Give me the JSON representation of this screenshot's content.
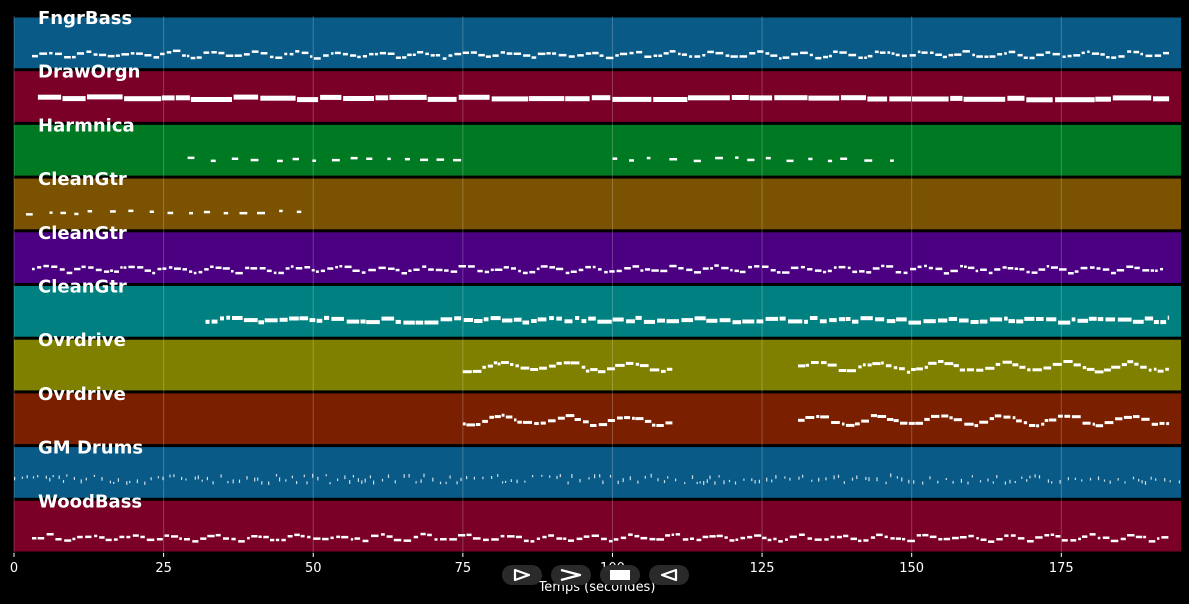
{
  "chart_data": {
    "type": "piano-roll",
    "xlabel": "Temps (secondes)",
    "xlim": [
      0,
      195
    ],
    "x_ticks": [
      0,
      25,
      50,
      75,
      100,
      125,
      150,
      175
    ],
    "x_tick_labels": [
      "0",
      "25",
      "50",
      "75",
      "100",
      "125",
      "150",
      "175"
    ],
    "grid": true,
    "tracks": [
      {
        "name": "FngrBass",
        "color": "#0a5a87",
        "style": "bass",
        "segments": [
          [
            3,
            193
          ]
        ]
      },
      {
        "name": "DrawOrgn",
        "color": "#7a0028",
        "style": "sustain",
        "segments": [
          [
            4,
            193
          ]
        ]
      },
      {
        "name": "Harmnica",
        "color": "#007a22",
        "style": "sparse",
        "segments": [
          [
            29,
            76
          ],
          [
            100,
            147
          ]
        ]
      },
      {
        "name": "CleanGtr",
        "color": "#7a5200",
        "style": "sparse",
        "segments": [
          [
            2,
            48
          ]
        ]
      },
      {
        "name": "CleanGtr",
        "color": "#4a0080",
        "style": "bass",
        "segments": [
          [
            3,
            192
          ]
        ]
      },
      {
        "name": "CleanGtr",
        "color": "#008080",
        "style": "dense",
        "segments": [
          [
            32,
            193
          ]
        ]
      },
      {
        "name": "Ovrdrive",
        "color": "#808000",
        "style": "melody",
        "segments": [
          [
            75,
            110
          ],
          [
            131,
            193
          ]
        ]
      },
      {
        "name": "Ovrdrive",
        "color": "#7a2000",
        "style": "melody",
        "segments": [
          [
            75,
            110
          ],
          [
            131,
            193
          ]
        ]
      },
      {
        "name": "GM Drums",
        "color": "#0a5a87",
        "style": "drums",
        "segments": [
          [
            0,
            195
          ]
        ]
      },
      {
        "name": "WoodBass",
        "color": "#7a0028",
        "style": "bass",
        "segments": [
          [
            3,
            193
          ]
        ]
      }
    ]
  },
  "controls": [
    {
      "name": "play-outline-button",
      "icon": "play-outline-icon"
    },
    {
      "name": "forward-button",
      "icon": "chevron-right-icon"
    },
    {
      "name": "stop-button",
      "icon": "stop-icon"
    },
    {
      "name": "reverse-button",
      "icon": "play-reverse-icon"
    }
  ]
}
